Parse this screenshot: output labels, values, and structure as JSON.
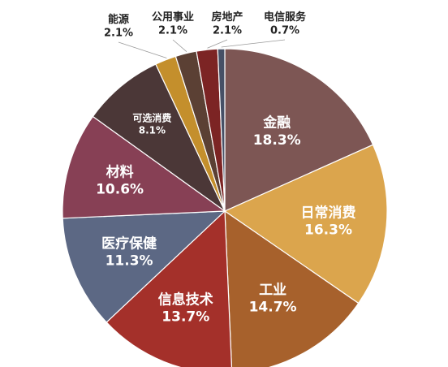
{
  "chart_data": {
    "type": "pie",
    "title": "",
    "legend": "none",
    "slices": [
      {
        "label": "金融",
        "value_text": "18.3%",
        "value": 18.3,
        "color": "#7d5654"
      },
      {
        "label": "日常消费",
        "value_text": "16.3%",
        "value": 16.3,
        "color": "#dba54d"
      },
      {
        "label": "工业",
        "value_text": "14.7%",
        "value": 14.7,
        "color": "#a7612c"
      },
      {
        "label": "信息技术",
        "value_text": "13.7%",
        "value": 13.7,
        "color": "#a4302a"
      },
      {
        "label": "医疗保健",
        "value_text": "11.3%",
        "value": 11.3,
        "color": "#5c6884"
      },
      {
        "label": "材料",
        "value_text": "10.6%",
        "value": 10.6,
        "color": "#874055"
      },
      {
        "label": "可选消费",
        "value_text": "8.1%",
        "value": 8.1,
        "color": "#4b3737"
      },
      {
        "label": "能源",
        "value_text": "2.1%",
        "value": 2.1,
        "color": "#c48f2c"
      },
      {
        "label": "公用事业",
        "value_text": "2.1%",
        "value": 2.1,
        "color": "#5b4034"
      },
      {
        "label": "房地产",
        "value_text": "2.1%",
        "value": 2.1,
        "color": "#7c2424"
      },
      {
        "label": "电信服务",
        "value_text": "0.7%",
        "value": 0.7,
        "color": "#465066"
      }
    ]
  }
}
